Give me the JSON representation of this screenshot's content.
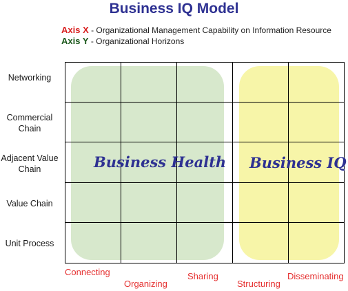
{
  "title": "Business IQ Model",
  "axes": {
    "x": {
      "key": "Axis X",
      "description": " - Organizational Management Capability on Information Resource",
      "color": "#d92323"
    },
    "y": {
      "key": "Axis Y",
      "description": " - Organizational Horizons",
      "color": "#1e5a1e"
    }
  },
  "rows": [
    "Networking",
    "Commercial Chain",
    "Adjacent Value Chain",
    "Value Chain",
    "Unit Process"
  ],
  "columns": [
    "Connecting",
    "Organizing",
    "Sharing",
    "Structuring",
    "Disseminating"
  ],
  "regions": [
    {
      "label": "Business Health",
      "color": "#d7e8cc"
    },
    {
      "label": "Business IQ",
      "color": "#f7f5a8"
    }
  ],
  "colors": {
    "title": "#2e3192",
    "column_labels": "#e53030",
    "grid_lines": "#000000"
  }
}
